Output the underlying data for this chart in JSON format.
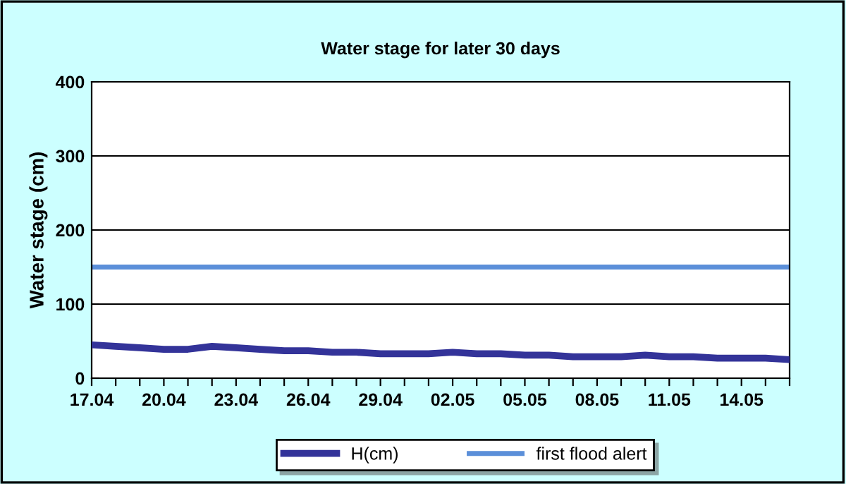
{
  "chart_data": {
    "type": "line",
    "title": "Water stage for later 30 days",
    "ylabel": "Water stage (cm)",
    "categories": [
      "17.04",
      null,
      null,
      "20.04",
      null,
      null,
      "23.04",
      null,
      null,
      "26.04",
      null,
      null,
      "29.04",
      null,
      null,
      "02.05",
      null,
      null,
      "05.05",
      null,
      null,
      "08.05",
      null,
      null,
      "11.05",
      null,
      null,
      "14.05",
      null,
      null
    ],
    "series": [
      {
        "name": "H(cm)",
        "color": "#333399",
        "values": [
          45,
          43,
          41,
          39,
          39,
          43,
          41,
          39,
          37,
          37,
          35,
          35,
          33,
          33,
          33,
          35,
          33,
          33,
          31,
          31,
          29,
          29,
          29,
          31,
          29,
          29,
          27,
          27,
          27,
          25
        ]
      }
    ],
    "ref_lines": [
      {
        "axis": "y",
        "value": 150,
        "label": "first flood alert",
        "color": "#5b8fd9"
      }
    ],
    "ylim": [
      0,
      400
    ],
    "yticks": [
      0,
      100,
      200,
      300,
      400
    ],
    "grid": "y",
    "legend": "bottom"
  }
}
